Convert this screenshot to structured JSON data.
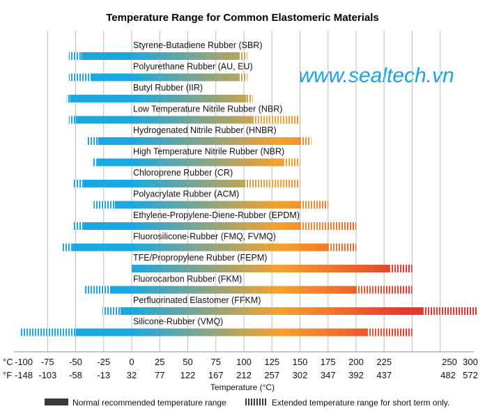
{
  "watermark": "www.sealtech.vn",
  "colors": {
    "cold": "#1ba8e0",
    "warm": "#f6a22c",
    "hot": "#e8362a",
    "grid": "#bdbdbd",
    "legend_bar": "#3a3a3a",
    "watermark": "#1aa0e6"
  },
  "legend": {
    "normal": "Normal recommended temperature range",
    "extended": "Extended temperature range for short term only."
  },
  "chart_data": {
    "type": "bar",
    "orientation": "horizontal-range",
    "title": "Temperature Range for Common Elastomeric Materials",
    "xlabel": "Temperature (°C)",
    "xlim": [
      -100,
      300
    ],
    "unit_c": "°C",
    "unit_f": "°F",
    "ticks_c": [
      -100,
      -75,
      -50,
      -25,
      0,
      25,
      50,
      75,
      100,
      125,
      150,
      175,
      200,
      225,
      250,
      300
    ],
    "ticks_f": [
      -148,
      -103,
      -58,
      -13,
      32,
      77,
      122,
      167,
      212,
      257,
      302,
      347,
      392,
      437,
      482,
      572
    ],
    "gridlines": [
      -75,
      -50,
      -25,
      0,
      25,
      50,
      75,
      100,
      125,
      150,
      175,
      200,
      225,
      250,
      275
    ],
    "materials": [
      {
        "name": "Styrene-Butadiene Rubber (SBR)",
        "ext_low": -56,
        "low": -45,
        "high": 95,
        "ext_high": 103
      },
      {
        "name": "Polyurethane Rubber (AU, EU)",
        "ext_low": -56,
        "low": -36,
        "high": 95,
        "ext_high": 103
      },
      {
        "name": "Butyl Rubber (IIR)",
        "ext_low": -58,
        "low": -55,
        "high": 102,
        "ext_high": 108
      },
      {
        "name": "Low Temperature Nitrile Rubber (NBR)",
        "ext_low": -56,
        "low": -50,
        "high": 108,
        "ext_high": 150
      },
      {
        "name": "Hydrogenated Nitrile Rubber (HNBR)",
        "ext_low": -40,
        "low": -30,
        "high": 150,
        "ext_high": 160
      },
      {
        "name": "High Temperature Nitrile Rubber (NBR)",
        "ext_low": -35,
        "low": -31,
        "high": 135,
        "ext_high": 150
      },
      {
        "name": "Chloroprene Rubber (CR)",
        "ext_low": -52,
        "low": -43,
        "high": 100,
        "ext_high": 150
      },
      {
        "name": "Polyacrylate Rubber (ACM)",
        "ext_low": -34,
        "low": -15,
        "high": 150,
        "ext_high": 175
      },
      {
        "name": "Ethylene-Propylene-Diene-Rubber (EPDM)",
        "ext_low": -52,
        "low": -43,
        "high": 150,
        "ext_high": 200
      },
      {
        "name": "Fluorosilicone-Rubber (FMQ, FVMQ)",
        "ext_low": -62,
        "low": -53,
        "high": 175,
        "ext_high": 200
      },
      {
        "name": "TFE/Propropylene Rubber (FEPM)",
        "ext_low": 0,
        "low": 0,
        "high": 230,
        "ext_high": 250
      },
      {
        "name": "Fluorocarbon Rubber (FKM)",
        "ext_low": -42,
        "low": -18,
        "high": 200,
        "ext_high": 250
      },
      {
        "name": "Perfluorinated Elastomer (FFKM)",
        "ext_low": -26,
        "low": -10,
        "high": 260,
        "ext_high": 320
      },
      {
        "name": "Silicone-Rubber (VMQ)",
        "ext_low": -100,
        "low": -50,
        "high": 210,
        "ext_high": 250
      }
    ]
  }
}
